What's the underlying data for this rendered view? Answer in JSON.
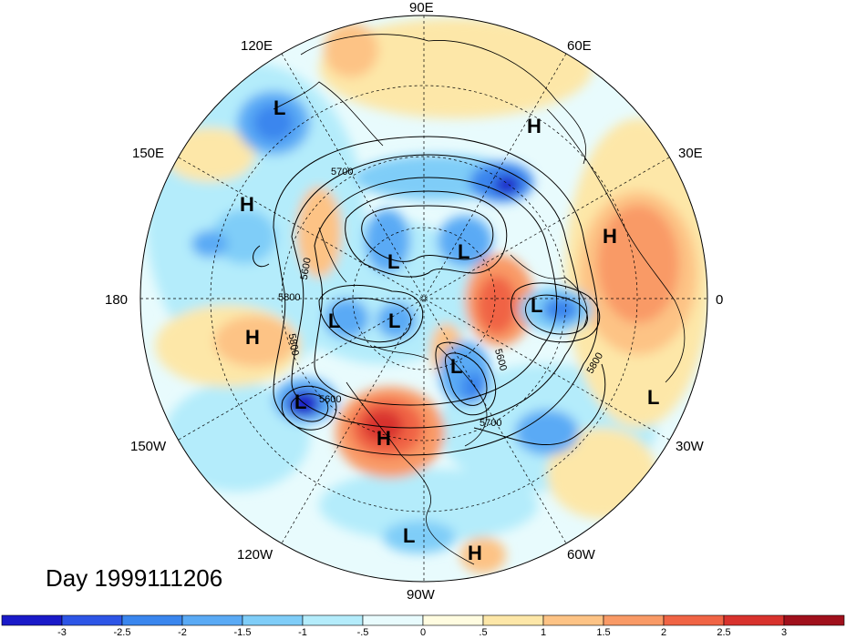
{
  "title": "Day 1999111206",
  "longitude_labels": [
    {
      "id": "90E",
      "text": "90E"
    },
    {
      "id": "60E",
      "text": "60E"
    },
    {
      "id": "30E",
      "text": "30E"
    },
    {
      "id": "0",
      "text": "0"
    },
    {
      "id": "30W",
      "text": "30W"
    },
    {
      "id": "60W",
      "text": "60W"
    },
    {
      "id": "90W",
      "text": "90W"
    },
    {
      "id": "120W",
      "text": "120W"
    },
    {
      "id": "150W",
      "text": "150W"
    },
    {
      "id": "180",
      "text": "180"
    },
    {
      "id": "150E",
      "text": "150E"
    },
    {
      "id": "120E",
      "text": "120E"
    }
  ],
  "pressure_centers": [
    {
      "type": "L",
      "text": "L"
    },
    {
      "type": "H",
      "text": "H"
    },
    {
      "type": "H",
      "text": "H"
    },
    {
      "type": "L",
      "text": "L"
    },
    {
      "type": "L",
      "text": "L"
    },
    {
      "type": "L",
      "text": "L"
    },
    {
      "type": "H",
      "text": "H"
    },
    {
      "type": "L",
      "text": "L"
    },
    {
      "type": "L",
      "text": "L"
    },
    {
      "type": "L",
      "text": "L"
    },
    {
      "type": "H",
      "text": "H"
    },
    {
      "type": "L",
      "text": "L"
    },
    {
      "type": "L",
      "text": "L"
    },
    {
      "type": "H",
      "text": "H"
    },
    {
      "type": "L",
      "text": "L"
    },
    {
      "type": "H",
      "text": "H"
    }
  ],
  "contour_labels": [
    "5700",
    "5600",
    "5800",
    "5800",
    "5600",
    "5600",
    "5700",
    "5800"
  ],
  "colorbar": {
    "ticks": [
      "-3",
      "-2.5",
      "-2",
      "-1.5",
      "-1",
      "-.5",
      "0",
      ".5",
      "1",
      "1.5",
      "2",
      "2.5",
      "3"
    ],
    "colors": [
      "#1a1ac8",
      "#2d55e6",
      "#3a86ee",
      "#5aaaf5",
      "#7fcdf8",
      "#b4ecfb",
      "#e8fbfd",
      "#fffce0",
      "#fde7a8",
      "#fdc385",
      "#f99a66",
      "#f06445",
      "#d8322d",
      "#a0101c"
    ]
  },
  "anomaly_colors": {
    "neg3": "#1a1ac8",
    "neg2": "#3a86ee",
    "neg15": "#5aaaf5",
    "neg1": "#7fcdf8",
    "neg05": "#b4ecfb",
    "neutral": "#e8fbfd",
    "pos05": "#fde7a8",
    "pos1": "#fdc385",
    "pos15": "#f99a66",
    "pos2": "#f06445",
    "pos25": "#d8322d"
  }
}
